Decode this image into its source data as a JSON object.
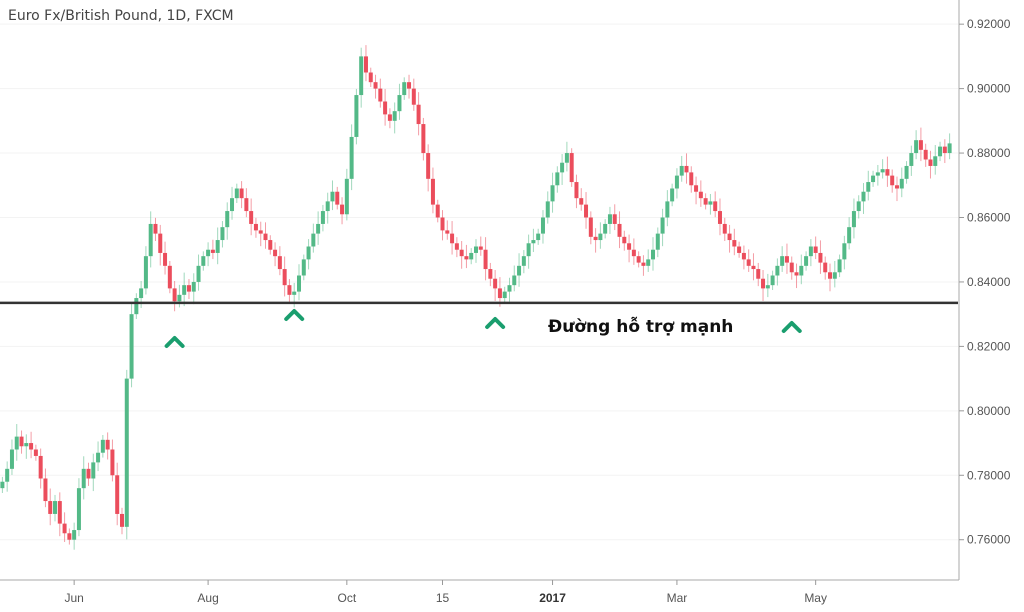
{
  "chart_data": {
    "type": "candlestick",
    "title": "Euro Fx/British Pound, 1D, FXCM",
    "y_ticks": [
      "0.92000",
      "0.90000",
      "0.88000",
      "0.86000",
      "0.84000",
      "0.82000",
      "0.80000",
      "0.78000",
      "0.76000"
    ],
    "y_tick_values": [
      0.92,
      0.9,
      0.88,
      0.86,
      0.84,
      0.82,
      0.8,
      0.78,
      0.76
    ],
    "ylim": [
      0.7475,
      0.9275
    ],
    "x_ticks": [
      {
        "label": "Jun",
        "index": 15,
        "bold": false
      },
      {
        "label": "Aug",
        "index": 43,
        "bold": false
      },
      {
        "label": "Oct",
        "index": 72,
        "bold": false
      },
      {
        "label": "15",
        "index": 92,
        "bold": false
      },
      {
        "label": "2017",
        "index": 115,
        "bold": true
      },
      {
        "label": "Mar",
        "index": 141,
        "bold": false
      },
      {
        "label": "May",
        "index": 170,
        "bold": false
      }
    ],
    "support_level": 0.8335,
    "support_label": "Đường hỗ trợ mạnh",
    "support_marker_indices": [
      36,
      61,
      103,
      165
    ],
    "colors": {
      "up": "#53b987",
      "down": "#eb4d5c",
      "support": "#333333",
      "marker": "#1a9e6e"
    },
    "closes": [
      0.778,
      0.782,
      0.788,
      0.792,
      0.789,
      0.79,
      0.788,
      0.786,
      0.779,
      0.772,
      0.768,
      0.772,
      0.765,
      0.762,
      0.76,
      0.763,
      0.776,
      0.782,
      0.779,
      0.784,
      0.787,
      0.791,
      0.788,
      0.78,
      0.768,
      0.764,
      0.81,
      0.83,
      0.835,
      0.838,
      0.848,
      0.858,
      0.855,
      0.849,
      0.845,
      0.838,
      0.834,
      0.836,
      0.839,
      0.837,
      0.84,
      0.845,
      0.848,
      0.85,
      0.849,
      0.853,
      0.857,
      0.862,
      0.866,
      0.869,
      0.866,
      0.862,
      0.858,
      0.856,
      0.855,
      0.853,
      0.85,
      0.848,
      0.844,
      0.839,
      0.836,
      0.837,
      0.842,
      0.847,
      0.851,
      0.855,
      0.858,
      0.862,
      0.865,
      0.868,
      0.864,
      0.861,
      0.872,
      0.885,
      0.898,
      0.91,
      0.905,
      0.902,
      0.9,
      0.896,
      0.892,
      0.89,
      0.893,
      0.898,
      0.902,
      0.9,
      0.895,
      0.889,
      0.88,
      0.872,
      0.864,
      0.86,
      0.856,
      0.855,
      0.852,
      0.85,
      0.848,
      0.847,
      0.849,
      0.851,
      0.85,
      0.844,
      0.841,
      0.838,
      0.835,
      0.837,
      0.839,
      0.842,
      0.845,
      0.848,
      0.852,
      0.853,
      0.855,
      0.86,
      0.865,
      0.87,
      0.874,
      0.877,
      0.88,
      0.871,
      0.866,
      0.864,
      0.86,
      0.854,
      0.853,
      0.855,
      0.858,
      0.861,
      0.858,
      0.854,
      0.852,
      0.85,
      0.848,
      0.846,
      0.845,
      0.847,
      0.85,
      0.855,
      0.86,
      0.865,
      0.869,
      0.873,
      0.876,
      0.874,
      0.87,
      0.868,
      0.866,
      0.864,
      0.865,
      0.862,
      0.858,
      0.855,
      0.853,
      0.851,
      0.849,
      0.847,
      0.845,
      0.844,
      0.841,
      0.838,
      0.839,
      0.842,
      0.845,
      0.848,
      0.846,
      0.843,
      0.842,
      0.845,
      0.848,
      0.851,
      0.849,
      0.846,
      0.843,
      0.841,
      0.843,
      0.847,
      0.852,
      0.857,
      0.862,
      0.865,
      0.868,
      0.871,
      0.873,
      0.874,
      0.875,
      0.873,
      0.87,
      0.869,
      0.872,
      0.876,
      0.88,
      0.884,
      0.881,
      0.878,
      0.876,
      0.879,
      0.882,
      0.88,
      0.883
    ]
  }
}
